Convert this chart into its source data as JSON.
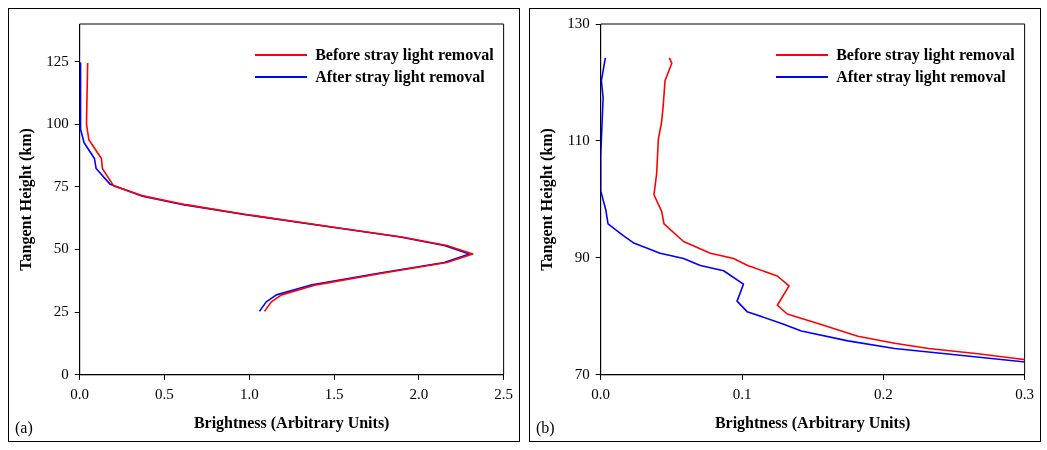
{
  "chart_data": [
    {
      "type": "line",
      "xlabel": "Brightness (Arbitrary Units)",
      "ylabel": "Tangent Height (km)",
      "annotations": [
        "(a)"
      ],
      "legend": "top right",
      "grid": false,
      "marker": "none",
      "line_style": "solid",
      "xlim": [
        0,
        2.5
      ],
      "ylim": [
        0,
        140
      ],
      "xticks": [
        {
          "value": 0,
          "label": "0.0"
        },
        {
          "value": 0.5,
          "label": "0.5"
        },
        {
          "value": 1,
          "label": "1.0"
        },
        {
          "value": 1.5,
          "label": "1.5"
        },
        {
          "value": 2,
          "label": "2.0"
        },
        {
          "value": 2.5,
          "label": "2.5"
        }
      ],
      "yticks": [
        0,
        25,
        50,
        75,
        100,
        125
      ],
      "series": [
        {
          "name": "Before stray light removal",
          "color": "#ff0000",
          "x": [
            0.047,
            0.04,
            0.054,
            0.128,
            0.134,
            0.2,
            0.38,
            0.625,
            0.99,
            1.48,
            1.9,
            2.165,
            2.318,
            2.165,
            1.8,
            1.395,
            1.19,
            1.13,
            1.09
          ],
          "values": [
            124.4,
            100,
            93.8,
            86.3,
            82.3,
            75.4,
            71.3,
            67.9,
            63.9,
            59.1,
            55,
            51.6,
            48.2,
            44.8,
            40.7,
            35.9,
            31.9,
            29.1,
            25.3
          ]
        },
        {
          "name": "After stray light removal",
          "color": "#0000ff",
          "x": [
            0.005,
            0.005,
            0.026,
            0.087,
            0.097,
            0.18,
            0.37,
            0.61,
            0.98,
            1.47,
            1.89,
            2.15,
            2.298,
            2.15,
            1.78,
            1.37,
            1.16,
            1.1,
            1.06
          ],
          "values": [
            124.4,
            98,
            92.6,
            86.3,
            82.3,
            76,
            71.3,
            67.9,
            63.9,
            59.1,
            55,
            51.6,
            48.2,
            44.8,
            40.7,
            35.9,
            31.9,
            29.1,
            25.3
          ]
        }
      ]
    },
    {
      "type": "line",
      "xlabel": "Brightness (Arbitrary Units)",
      "ylabel": "Tangent Height (km)",
      "annotations": [
        "(b)"
      ],
      "legend": "top right",
      "grid": false,
      "marker": "none",
      "line_style": "solid",
      "xlim": [
        0,
        0.3
      ],
      "ylim": [
        70,
        130
      ],
      "xticks": [
        {
          "value": 0,
          "label": "0.0"
        },
        {
          "value": 0.1,
          "label": "0.1"
        },
        {
          "value": 0.2,
          "label": "0.2"
        },
        {
          "value": 0.3,
          "label": "0.3"
        }
      ],
      "yticks": [
        70,
        90,
        110,
        130
      ],
      "series": [
        {
          "name": "Before stray light removal",
          "color": "#ff0000",
          "x": [
            0.0486,
            0.0503,
            0.0455,
            0.0443,
            0.0431,
            0.0408,
            0.0396,
            0.0377,
            0.0432,
            0.0448,
            0.0586,
            0.0776,
            0.094,
            0.104,
            0.125,
            0.1333,
            0.125,
            0.132,
            0.156,
            0.182,
            0.208,
            0.232,
            0.267,
            0.3
          ],
          "values": [
            124.2,
            123.3,
            120.3,
            116.2,
            113.2,
            110.3,
            104.4,
            100.8,
            97.9,
            95.8,
            92.8,
            90.8,
            89.9,
            88.7,
            86.9,
            85.2,
            81.9,
            80.4,
            78.6,
            76.6,
            75.4,
            74.5,
            73.6,
            72.6
          ]
        },
        {
          "name": "After stray light removal",
          "color": "#0000ff",
          "x": [
            0.0033,
            0.0005,
            0.0017,
            0,
            0,
            0.0036,
            0.0052,
            0.016,
            0.023,
            0.042,
            0.0586,
            0.0705,
            0.087,
            0.101,
            0.0965,
            0.1036,
            0.129,
            0.142,
            0.175,
            0.208,
            0.244,
            0.3
          ],
          "values": [
            124.2,
            120.3,
            117.4,
            107.4,
            101.5,
            98.2,
            95.8,
            93.8,
            92.6,
            90.8,
            89.9,
            88.7,
            87.8,
            85.5,
            82.6,
            80.8,
            78.7,
            77.5,
            75.8,
            74.5,
            73.6,
            72.2
          ]
        }
      ]
    }
  ]
}
